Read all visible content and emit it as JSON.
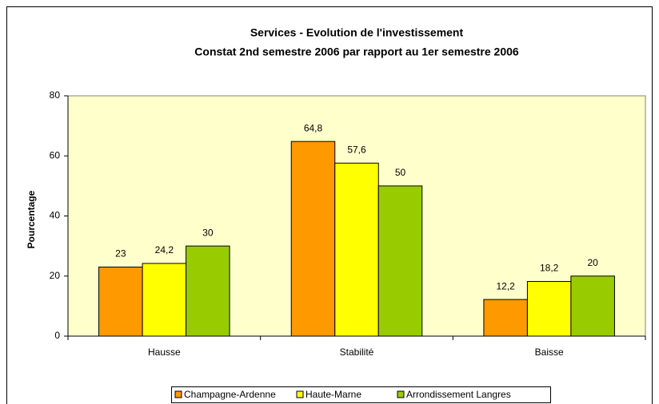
{
  "chart_data": {
    "type": "bar",
    "title": "Services - Evolution de l'investissement",
    "subtitle": "Constat 2nd semestre 2006 par rapport au 1er semestre 2006",
    "y_label": "Pourcentage",
    "categories": [
      "Hausse",
      "Stabilité",
      "Baisse"
    ],
    "series": [
      {
        "name": "Champagne-Ardenne",
        "color": "#ff9900",
        "values": [
          23,
          64.8,
          12.2
        ],
        "value_labels": [
          "23",
          "64,8",
          "12,2"
        ]
      },
      {
        "name": "Haute-Marne",
        "color": "#ffff00",
        "values": [
          24.2,
          57.6,
          18.2
        ],
        "value_labels": [
          "24,2",
          "57,6",
          "18,2"
        ]
      },
      {
        "name": "Arrondissement Langres",
        "color": "#99cc00",
        "values": [
          30,
          50,
          20
        ],
        "value_labels": [
          "30",
          "50",
          "20"
        ]
      }
    ],
    "ylim": [
      0,
      80
    ],
    "yticks": [
      0,
      20,
      40,
      60,
      80
    ],
    "grid": false,
    "legend": "bottom"
  }
}
